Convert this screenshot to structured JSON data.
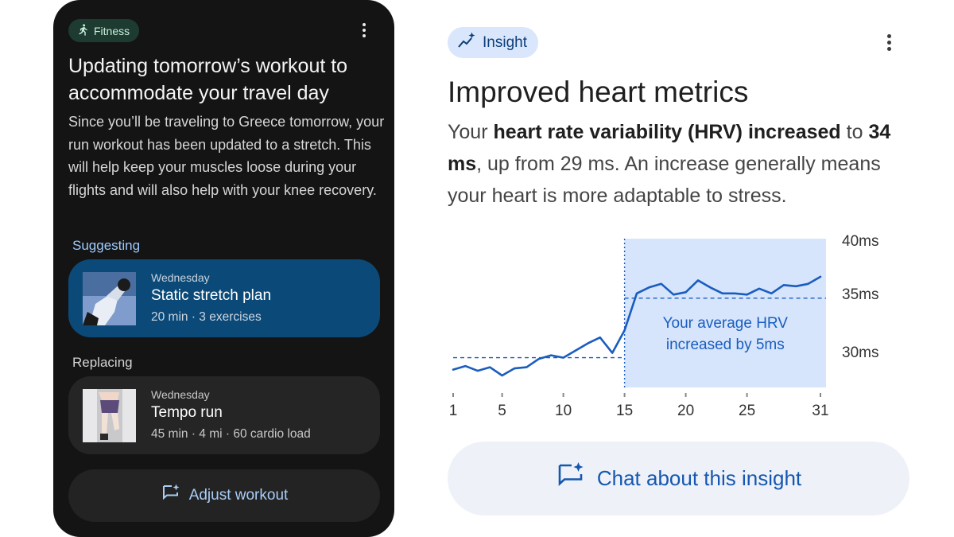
{
  "fitness_card": {
    "chip_label": "Fitness",
    "title": "Updating tomorrow’s workout to accommodate your travel day",
    "body": "Since you’ll be traveling to Greece tomorrow, your run workout has been updated to a stretch. This will help keep your muscles loose during your flights and will also help with your knee recovery.",
    "suggesting_label": "Suggesting",
    "suggested": {
      "day": "Wednesday",
      "name": "Static stretch plan",
      "meta": "20 min · 3 exercises"
    },
    "replacing_label": "Replacing",
    "replaced": {
      "day": "Wednesday",
      "name": "Tempo run",
      "meta": "45 min · 4 mi · 60 cardio load"
    },
    "adjust_button": "Adjust workout"
  },
  "insight": {
    "chip_label": "Insight",
    "title": "Improved heart metrics",
    "desc_pre": "Your ",
    "desc_bold1": "heart rate variability (HRV) increased",
    "desc_mid": " to ",
    "desc_bold2": "34 ms",
    "desc_post": ", up from 29 ms. An increase generally means your heart is more adaptable to stress.",
    "chat_button": "Chat about this insight"
  },
  "chart_data": {
    "type": "line",
    "x": [
      1,
      2,
      3,
      4,
      5,
      6,
      7,
      8,
      9,
      10,
      11,
      12,
      13,
      14,
      15,
      16,
      17,
      18,
      19,
      20,
      21,
      22,
      23,
      24,
      25,
      26,
      27,
      28,
      29,
      30,
      31
    ],
    "series": [
      {
        "values": [
          29.0,
          29.3,
          28.9,
          29.2,
          28.5,
          29.1,
          29.2,
          29.9,
          30.2,
          30.0,
          30.6,
          31.2,
          31.7,
          30.4,
          32.3,
          35.4,
          35.9,
          36.2,
          35.3,
          35.5,
          36.5,
          35.9,
          35.4,
          35.4,
          35.3,
          35.8,
          35.4,
          36.1,
          36.0,
          36.2,
          36.8
        ]
      }
    ],
    "x_ticks": [
      1,
      5,
      10,
      15,
      20,
      25,
      31
    ],
    "y_ticks": [
      "30ms",
      "35ms",
      "40ms"
    ],
    "ylim": [
      27.5,
      40
    ],
    "baseline_before": 30.0,
    "baseline_after": 35.0,
    "highlight_from_x": 15,
    "annotation": "Your average HRV increased by 5ms",
    "grid": false,
    "colors": {
      "line": "#1a5dbf",
      "highlight": "#d6e5fb",
      "annotation": "#1a5dbf"
    }
  },
  "colors": {
    "card_bg": "#141414",
    "suggest_card": "#0b4a78",
    "accent_blue": "#1557b0"
  }
}
